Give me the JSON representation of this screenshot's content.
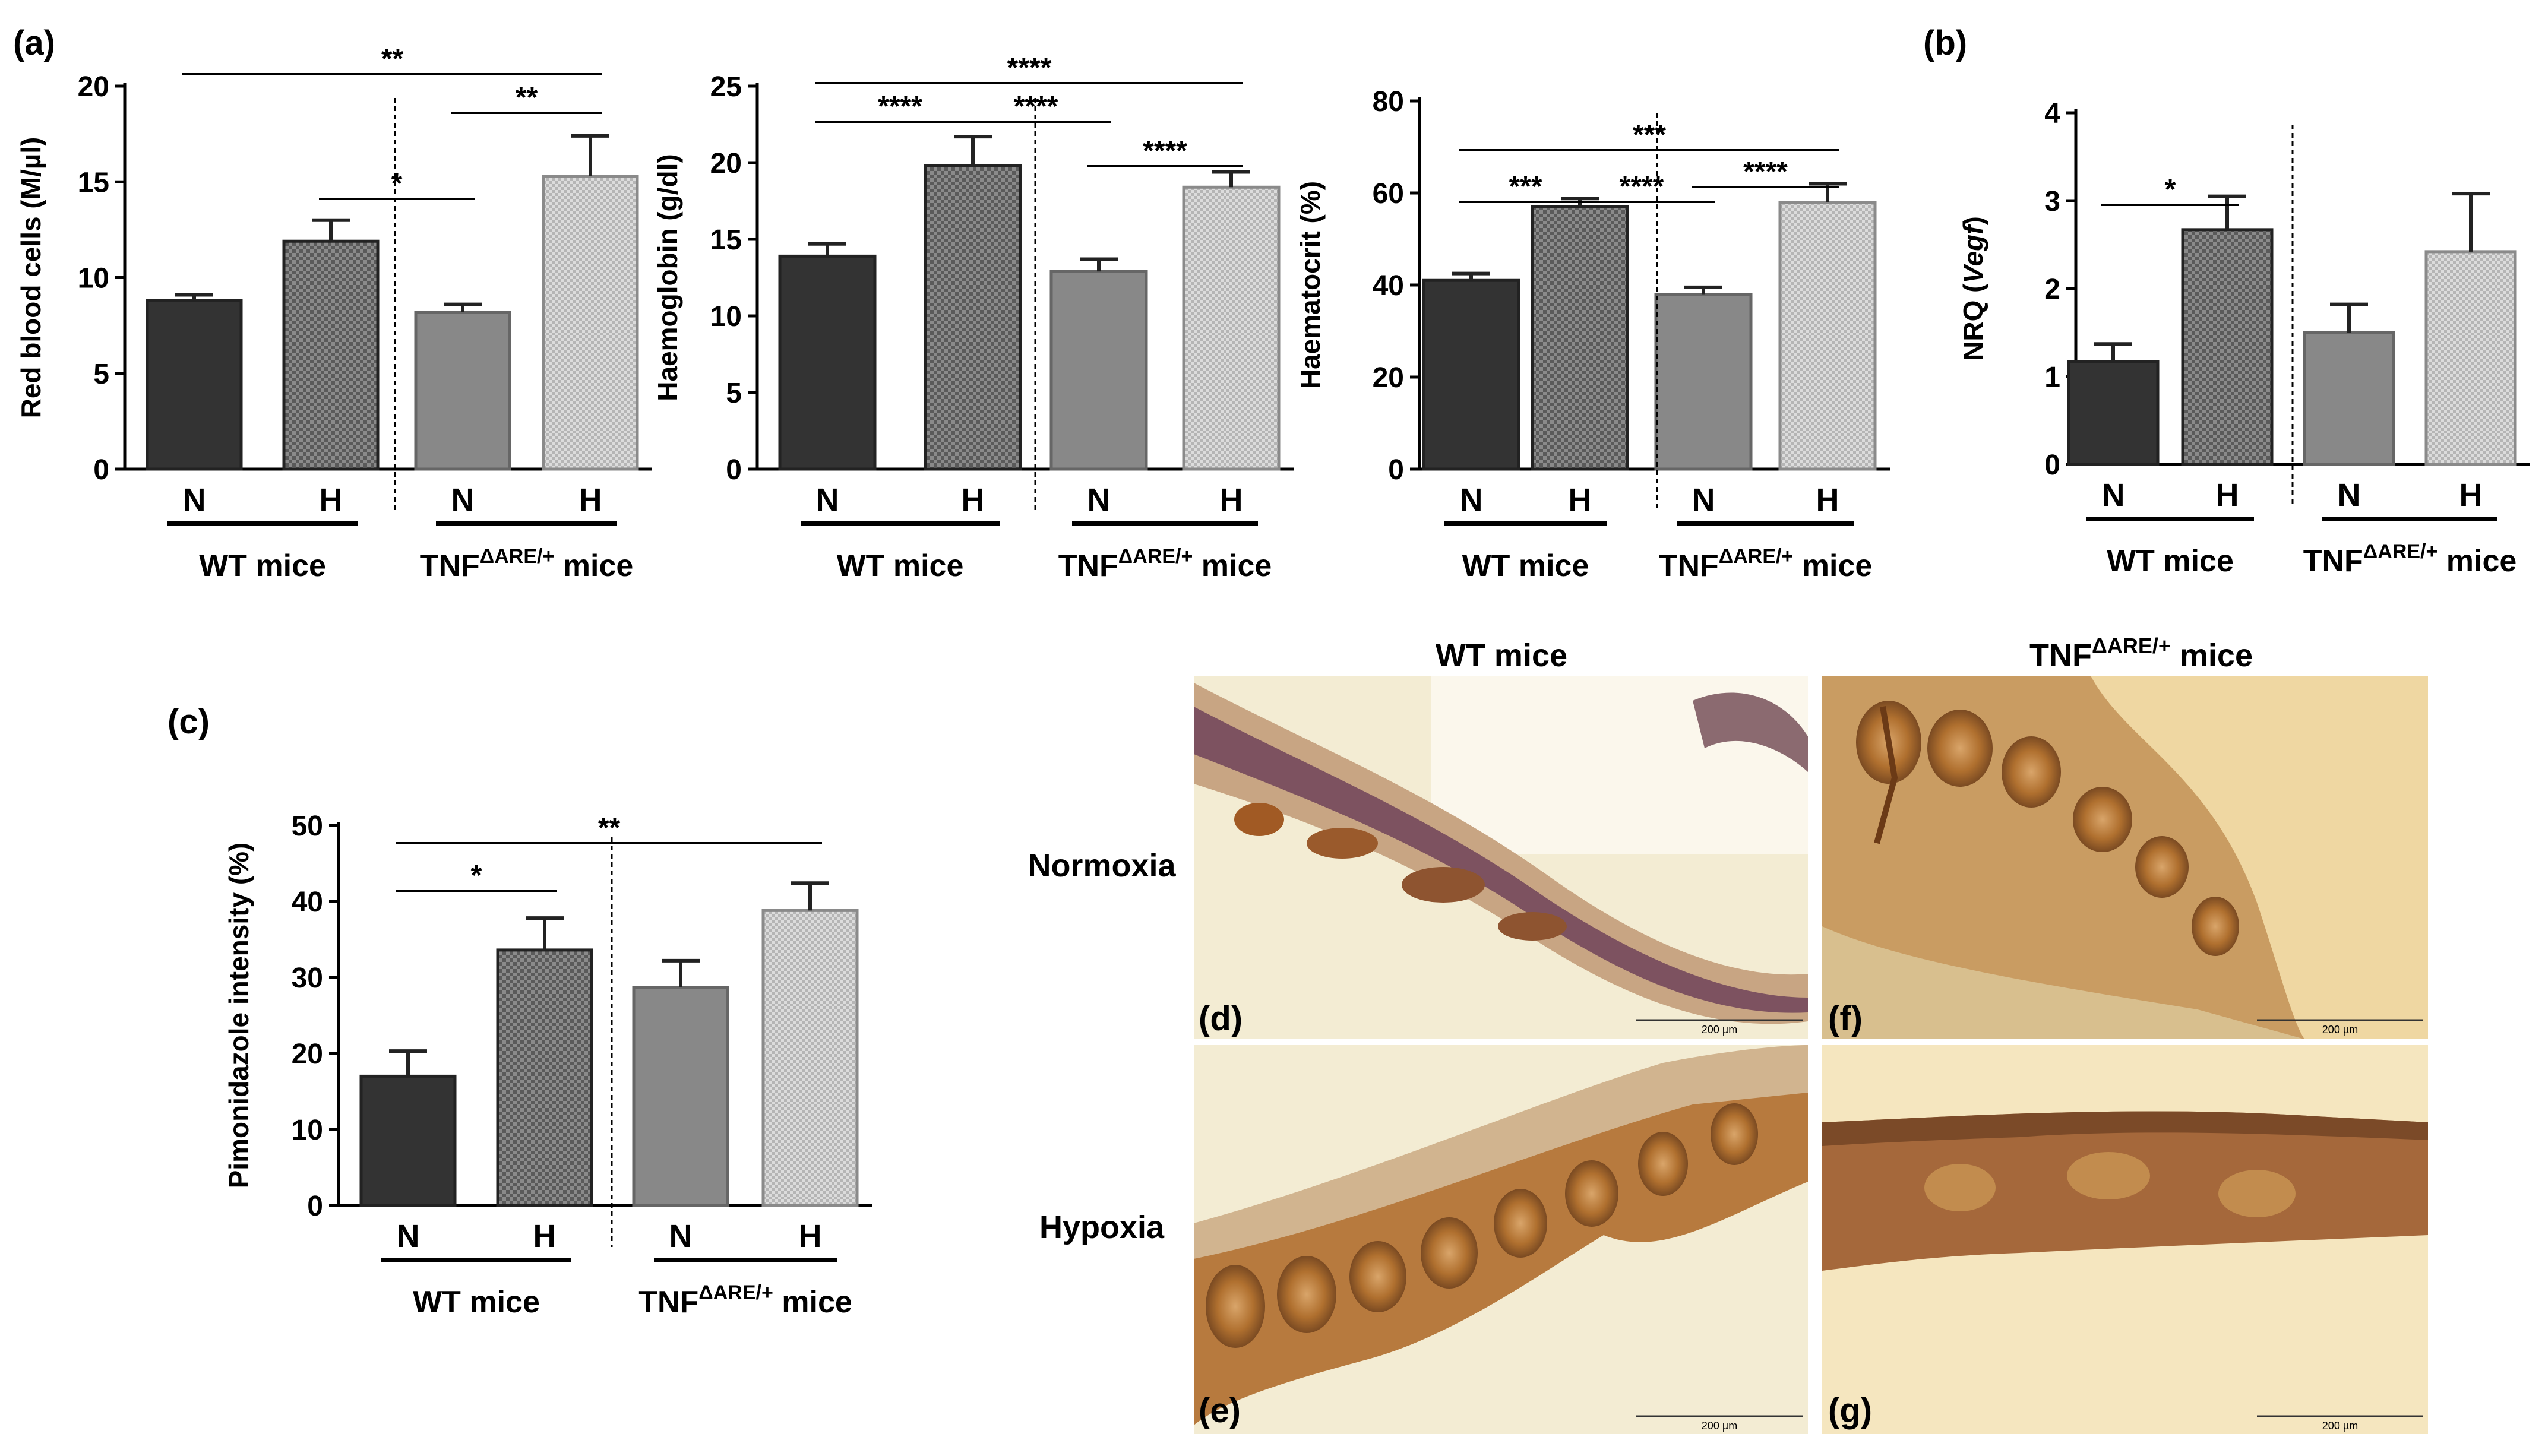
{
  "panel_labels": {
    "a": "(a)",
    "b": "(b)",
    "c": "(c)",
    "d": "(d)",
    "e": "(e)",
    "f": "(f)",
    "g": "(g)"
  },
  "group_labels": {
    "wt": "WT mice",
    "tnf_base": "TNF",
    "tnf_sup": "ΔARE/+",
    "tnf_tail": "mice"
  },
  "micrographs": {
    "col_wt": "WT mice",
    "col_tnf_base": "TNF",
    "col_tnf_sup": "ΔARE/+",
    "col_tnf_tail": "mice",
    "row_normoxia": "Normoxia",
    "row_hypoxia": "Hypoxia",
    "scale_label": "200 µm"
  },
  "colors": {
    "wt_normoxia": "#333333",
    "wt_hypoxia": "#8a8a8a",
    "tnf_normoxia": "#888888",
    "tnf_hypoxia": "#d2d2d2",
    "tissue_bg": "#f1e9cc",
    "tissue_stain": "#a8692e"
  },
  "chart_data": [
    {
      "id": "rbc",
      "type": "bar",
      "categories": [
        "N",
        "H",
        "N",
        "H"
      ],
      "groups": [
        "WT mice",
        "TNFΔARE/+ mice"
      ],
      "values": [
        8.8,
        11.9,
        8.2,
        15.3
      ],
      "errors": [
        0.3,
        1.1,
        0.4,
        2.1
      ],
      "ylabel": "Red blood cells (M/µl)",
      "ylim": [
        0,
        20
      ],
      "yticks": [
        "0",
        "5",
        "10",
        "15",
        "20"
      ],
      "significance": [
        {
          "from": 0,
          "to": 3,
          "label": "**"
        },
        {
          "from": 2,
          "to": 3,
          "label": "**"
        },
        {
          "from": 1,
          "to": 2,
          "label": "*"
        }
      ]
    },
    {
      "id": "hgb",
      "type": "bar",
      "categories": [
        "N",
        "H",
        "N",
        "H"
      ],
      "groups": [
        "WT mice",
        "TNFΔARE/+ mice"
      ],
      "values": [
        13.9,
        19.8,
        12.9,
        18.4
      ],
      "errors": [
        0.8,
        1.9,
        0.8,
        1.0
      ],
      "ylabel": "Haemoglobin (g/dl)",
      "ylim": [
        0,
        25
      ],
      "yticks": [
        "0",
        "5",
        "10",
        "15",
        "20",
        "25"
      ],
      "significance": [
        {
          "from": 0,
          "to": 3,
          "label": "****"
        },
        {
          "from": 0,
          "to": 1,
          "label": "****"
        },
        {
          "from": 1,
          "to": 2,
          "label": "****"
        },
        {
          "from": 2,
          "to": 3,
          "label": "****"
        }
      ]
    },
    {
      "id": "hct",
      "type": "bar",
      "categories": [
        "N",
        "H",
        "N",
        "H"
      ],
      "groups": [
        "WT mice",
        "TNFΔARE/+ mice"
      ],
      "values": [
        41,
        57,
        38,
        58
      ],
      "errors": [
        1.5,
        1.8,
        1.5,
        4.0
      ],
      "ylabel": "Haematocrit (%)",
      "ylim": [
        0,
        80
      ],
      "yticks": [
        "0",
        "20",
        "40",
        "60",
        "80"
      ],
      "significance": [
        {
          "from": 0,
          "to": 3,
          "label": "***"
        },
        {
          "from": 0,
          "to": 1,
          "label": "***"
        },
        {
          "from": 1,
          "to": 2,
          "label": "****"
        },
        {
          "from": 2,
          "to": 3,
          "label": "****"
        }
      ]
    },
    {
      "id": "vegf",
      "type": "bar",
      "categories": [
        "N",
        "H",
        "N",
        "H"
      ],
      "groups": [
        "WT mice",
        "TNFΔARE/+ mice"
      ],
      "values": [
        1.17,
        2.67,
        1.5,
        2.42
      ],
      "errors": [
        0.2,
        0.38,
        0.32,
        0.66
      ],
      "ylabel_pre": "NRQ (",
      "ylabel_it": "Vegf",
      "ylabel_post": ")",
      "ylim": [
        0,
        4
      ],
      "yticks": [
        "0",
        "1",
        "2",
        "3",
        "4"
      ],
      "significance": [
        {
          "from": 0,
          "to": 1,
          "label": "*"
        }
      ]
    },
    {
      "id": "pimo",
      "type": "bar",
      "categories": [
        "N",
        "H",
        "N",
        "H"
      ],
      "groups": [
        "WT mice",
        "TNFΔARE/+ mice"
      ],
      "values": [
        17,
        33.6,
        28.7,
        38.8
      ],
      "errors": [
        3.3,
        4.2,
        3.5,
        3.6
      ],
      "ylabel": "Pimonidazole intensity (%)",
      "ylim": [
        0,
        50
      ],
      "yticks": [
        "0",
        "10",
        "20",
        "30",
        "40",
        "50"
      ],
      "significance": [
        {
          "from": 0,
          "to": 1,
          "label": "*"
        },
        {
          "from": 0,
          "to": 3,
          "label": "**"
        }
      ]
    }
  ]
}
